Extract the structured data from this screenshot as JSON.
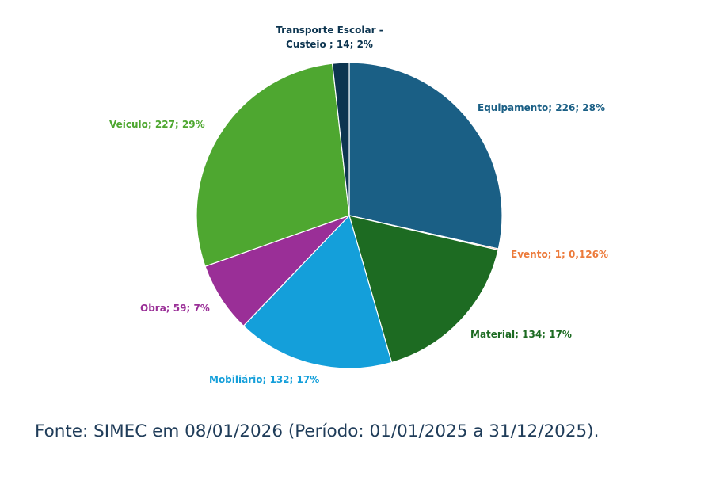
{
  "chart_data": {
    "type": "pie",
    "title": "",
    "start_angle_deg": 0,
    "direction": "clockwise",
    "slices": [
      {
        "key": "equipamento",
        "name": "Equipamento",
        "value": 226,
        "label": "Equipamento; 226; 28%",
        "color": "#1a5f85"
      },
      {
        "key": "evento",
        "name": "Evento",
        "value": 1,
        "label": "Evento; 1; 0,126%",
        "color": "#ec7a3a"
      },
      {
        "key": "material",
        "name": "Material",
        "value": 134,
        "label": "Material; 134; 17%",
        "color": "#1d6b22"
      },
      {
        "key": "mobiliario",
        "name": "Mobiliário",
        "value": 132,
        "label": "Mobiliário; 132; 17%",
        "color": "#149fda"
      },
      {
        "key": "obra",
        "name": "Obra",
        "value": 59,
        "label": "Obra; 59; 7%",
        "color": "#9a2f97"
      },
      {
        "key": "veiculo",
        "name": "Veículo",
        "value": 227,
        "label": "Veículo; 227; 29%",
        "color": "#4ea730"
      },
      {
        "key": "transporte",
        "name": "Transporte Escolar - Custeio",
        "value": 14,
        "label_line1": "Transporte Escolar -",
        "label_line2": "Custeio ; 14; 2%",
        "color": "#0d3550"
      }
    ]
  },
  "footer": {
    "source": "Fonte: SIMEC em 08/01/2026 (Período: 01/01/2025 a 31/12/2025)."
  }
}
